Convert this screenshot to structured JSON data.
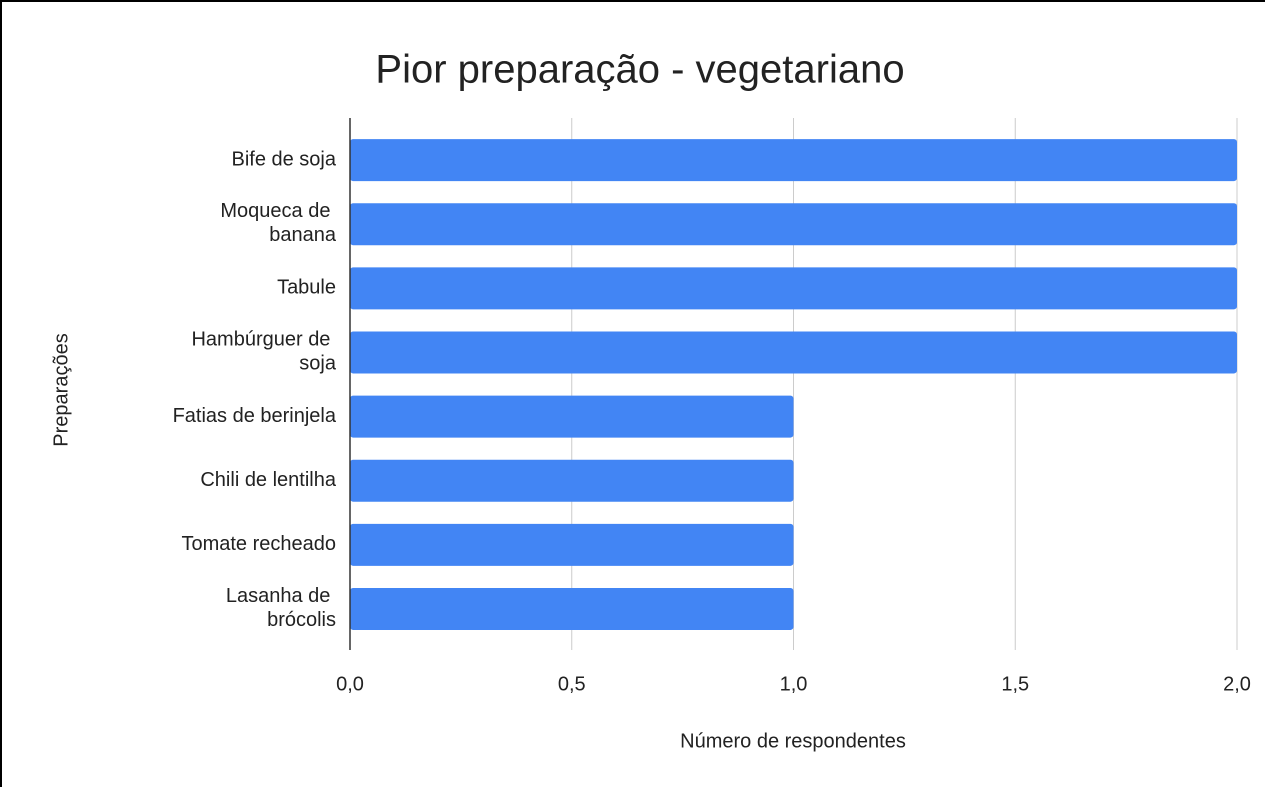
{
  "chart_data": {
    "type": "barh",
    "title": "Pior preparação - vegetariano",
    "xlabel": "Número de respondentes",
    "ylabel": "Preparações",
    "categories": [
      "Bife de soja",
      "Moqueca de banana",
      "Tabule",
      "Hambúrguer de soja",
      "Fatias de berinjela",
      "Chili de lentilha",
      "Tomate recheado",
      "Lasanha de brócolis"
    ],
    "values": [
      2,
      2,
      2,
      2,
      1,
      1,
      1,
      1
    ],
    "color": "#4285f4",
    "xlim": [
      0,
      2
    ],
    "xticks": [
      {
        "value": 0,
        "label": "0,0"
      },
      {
        "value": 0.5,
        "label": "0,5"
      },
      {
        "value": 1,
        "label": "1,0"
      },
      {
        "value": 1.5,
        "label": "1,5"
      },
      {
        "value": 2,
        "label": "2,0"
      }
    ],
    "grid": true
  }
}
